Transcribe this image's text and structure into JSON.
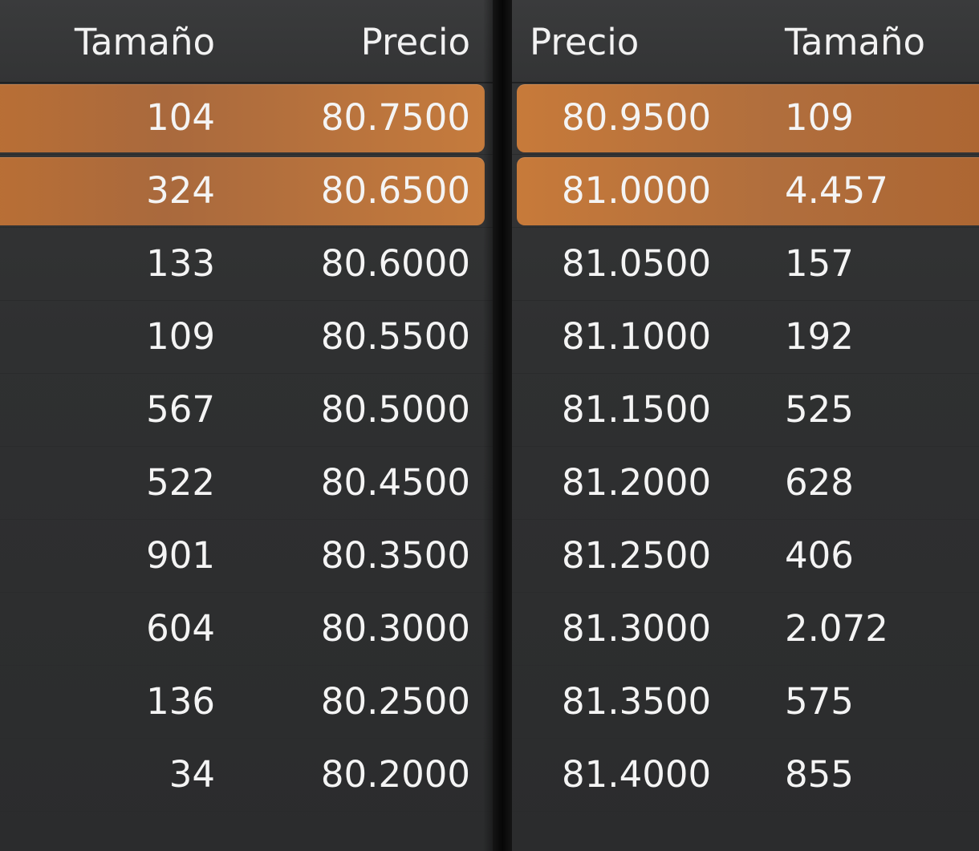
{
  "bids": {
    "headers": {
      "size": "Tamaño",
      "price": "Precio"
    },
    "rows": [
      {
        "size": "104",
        "price": "80.7500",
        "highlighted": true
      },
      {
        "size": "324",
        "price": "80.6500",
        "highlighted": true
      },
      {
        "size": "133",
        "price": "80.6000",
        "highlighted": false
      },
      {
        "size": "109",
        "price": "80.5500",
        "highlighted": false
      },
      {
        "size": "567",
        "price": "80.5000",
        "highlighted": false
      },
      {
        "size": "522",
        "price": "80.4500",
        "highlighted": false
      },
      {
        "size": "901",
        "price": "80.3500",
        "highlighted": false
      },
      {
        "size": "604",
        "price": "80.3000",
        "highlighted": false
      },
      {
        "size": "136",
        "price": "80.2500",
        "highlighted": false
      },
      {
        "size": "34",
        "price": "80.2000",
        "highlighted": false
      }
    ]
  },
  "asks": {
    "headers": {
      "price": "Precio",
      "size": "Tamaño"
    },
    "rows": [
      {
        "price": "80.9500",
        "size": "109",
        "highlighted": true
      },
      {
        "price": "81.0000",
        "size": "4.457",
        "highlighted": true
      },
      {
        "price": "81.0500",
        "size": "157",
        "highlighted": false
      },
      {
        "price": "81.1000",
        "size": "192",
        "highlighted": false
      },
      {
        "price": "81.1500",
        "size": "525",
        "highlighted": false
      },
      {
        "price": "81.2000",
        "size": "628",
        "highlighted": false
      },
      {
        "price": "81.2500",
        "size": "406",
        "highlighted": false
      },
      {
        "price": "81.3000",
        "size": "2.072",
        "highlighted": false
      },
      {
        "price": "81.3500",
        "size": "575",
        "highlighted": false
      },
      {
        "price": "81.4000",
        "size": "855",
        "highlighted": false
      }
    ]
  },
  "colors": {
    "highlight": "#c57b3d",
    "panel_bg": "#2f3031",
    "text": "#f4f4f4",
    "divider": "#0a0a0a"
  }
}
